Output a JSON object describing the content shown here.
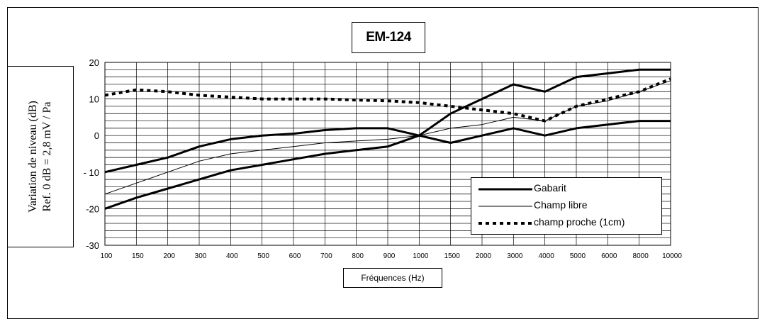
{
  "chart_data": {
    "type": "line",
    "title": "EM-124",
    "ylabel_line1": "Variation de niveau (dB)",
    "ylabel_line2": "Ref. 0 dB = 2,8 mV / Pa",
    "xlabel": "Fréquences (Hz)",
    "x_scale": "piecewise-log",
    "x_ticks": [
      100,
      150,
      200,
      300,
      400,
      500,
      600,
      700,
      800,
      900,
      1000,
      1500,
      2000,
      3000,
      4000,
      5000,
      6000,
      8000,
      10000
    ],
    "x_tick_labels": [
      "100",
      "150",
      "200",
      "300",
      "400",
      "500",
      "600",
      "700",
      "800",
      "900",
      "1000",
      "1500",
      "2000",
      "3000",
      "4000",
      "5000",
      "6000",
      "8000",
      "10000"
    ],
    "ylim": [
      -30,
      20
    ],
    "y_ticks": [
      20,
      10,
      0,
      -10,
      -20,
      -30
    ],
    "y_tick_labels": [
      "20",
      "10",
      "0",
      "- 10",
      "-20",
      "-30"
    ],
    "y_minor_step": 2,
    "grid": true,
    "legend_position": "lower-right",
    "series": [
      {
        "name": "Gabarit",
        "style": "thick",
        "color": "#000000",
        "points": [
          [
            100,
            -10
          ],
          [
            150,
            -8
          ],
          [
            200,
            -6
          ],
          [
            300,
            -3
          ],
          [
            400,
            -1
          ],
          [
            500,
            0
          ],
          [
            600,
            0.5
          ],
          [
            700,
            1.5
          ],
          [
            800,
            2
          ],
          [
            900,
            2
          ],
          [
            1000,
            0
          ],
          [
            1500,
            6
          ],
          [
            2000,
            10
          ],
          [
            3000,
            14
          ],
          [
            4000,
            12
          ],
          [
            5000,
            16
          ],
          [
            6000,
            17
          ],
          [
            8000,
            18
          ],
          [
            10000,
            18
          ]
        ]
      },
      {
        "name": "Gabarit",
        "style": "thick",
        "color": "#000000",
        "legend": false,
        "points": [
          [
            100,
            -20
          ],
          [
            150,
            -17
          ],
          [
            200,
            -14.5
          ],
          [
            300,
            -12
          ],
          [
            400,
            -9.5
          ],
          [
            500,
            -8
          ],
          [
            600,
            -6.5
          ],
          [
            700,
            -5
          ],
          [
            800,
            -4
          ],
          [
            900,
            -3
          ],
          [
            1000,
            0
          ],
          [
            1500,
            -2
          ],
          [
            2000,
            0
          ],
          [
            3000,
            2
          ],
          [
            4000,
            0
          ],
          [
            5000,
            2
          ],
          [
            6000,
            3
          ],
          [
            8000,
            4
          ],
          [
            10000,
            4
          ]
        ]
      },
      {
        "name": "Champ libre",
        "style": "thin",
        "color": "#000000",
        "points": [
          [
            100,
            -16
          ],
          [
            150,
            -13
          ],
          [
            200,
            -10
          ],
          [
            300,
            -7
          ],
          [
            400,
            -5
          ],
          [
            500,
            -4
          ],
          [
            600,
            -3
          ],
          [
            700,
            -2
          ],
          [
            800,
            -1.5
          ],
          [
            900,
            -1
          ],
          [
            1000,
            0
          ],
          [
            1500,
            2
          ],
          [
            2000,
            3
          ],
          [
            3000,
            5
          ],
          [
            4000,
            4
          ],
          [
            5000,
            8
          ],
          [
            6000,
            9.5
          ],
          [
            8000,
            12
          ],
          [
            10000,
            15
          ]
        ]
      },
      {
        "name": "champ proche (1cm)",
        "style": "dotted",
        "color": "#000000",
        "points": [
          [
            100,
            11
          ],
          [
            150,
            12.5
          ],
          [
            200,
            12
          ],
          [
            300,
            11
          ],
          [
            400,
            10.5
          ],
          [
            500,
            10
          ],
          [
            600,
            10
          ],
          [
            700,
            10
          ],
          [
            800,
            9.7
          ],
          [
            900,
            9.5
          ],
          [
            1000,
            9
          ],
          [
            1500,
            8
          ],
          [
            2000,
            7
          ],
          [
            3000,
            6
          ],
          [
            4000,
            4
          ],
          [
            5000,
            8
          ],
          [
            6000,
            10
          ],
          [
            8000,
            12
          ],
          [
            10000,
            15.5
          ]
        ]
      }
    ]
  }
}
